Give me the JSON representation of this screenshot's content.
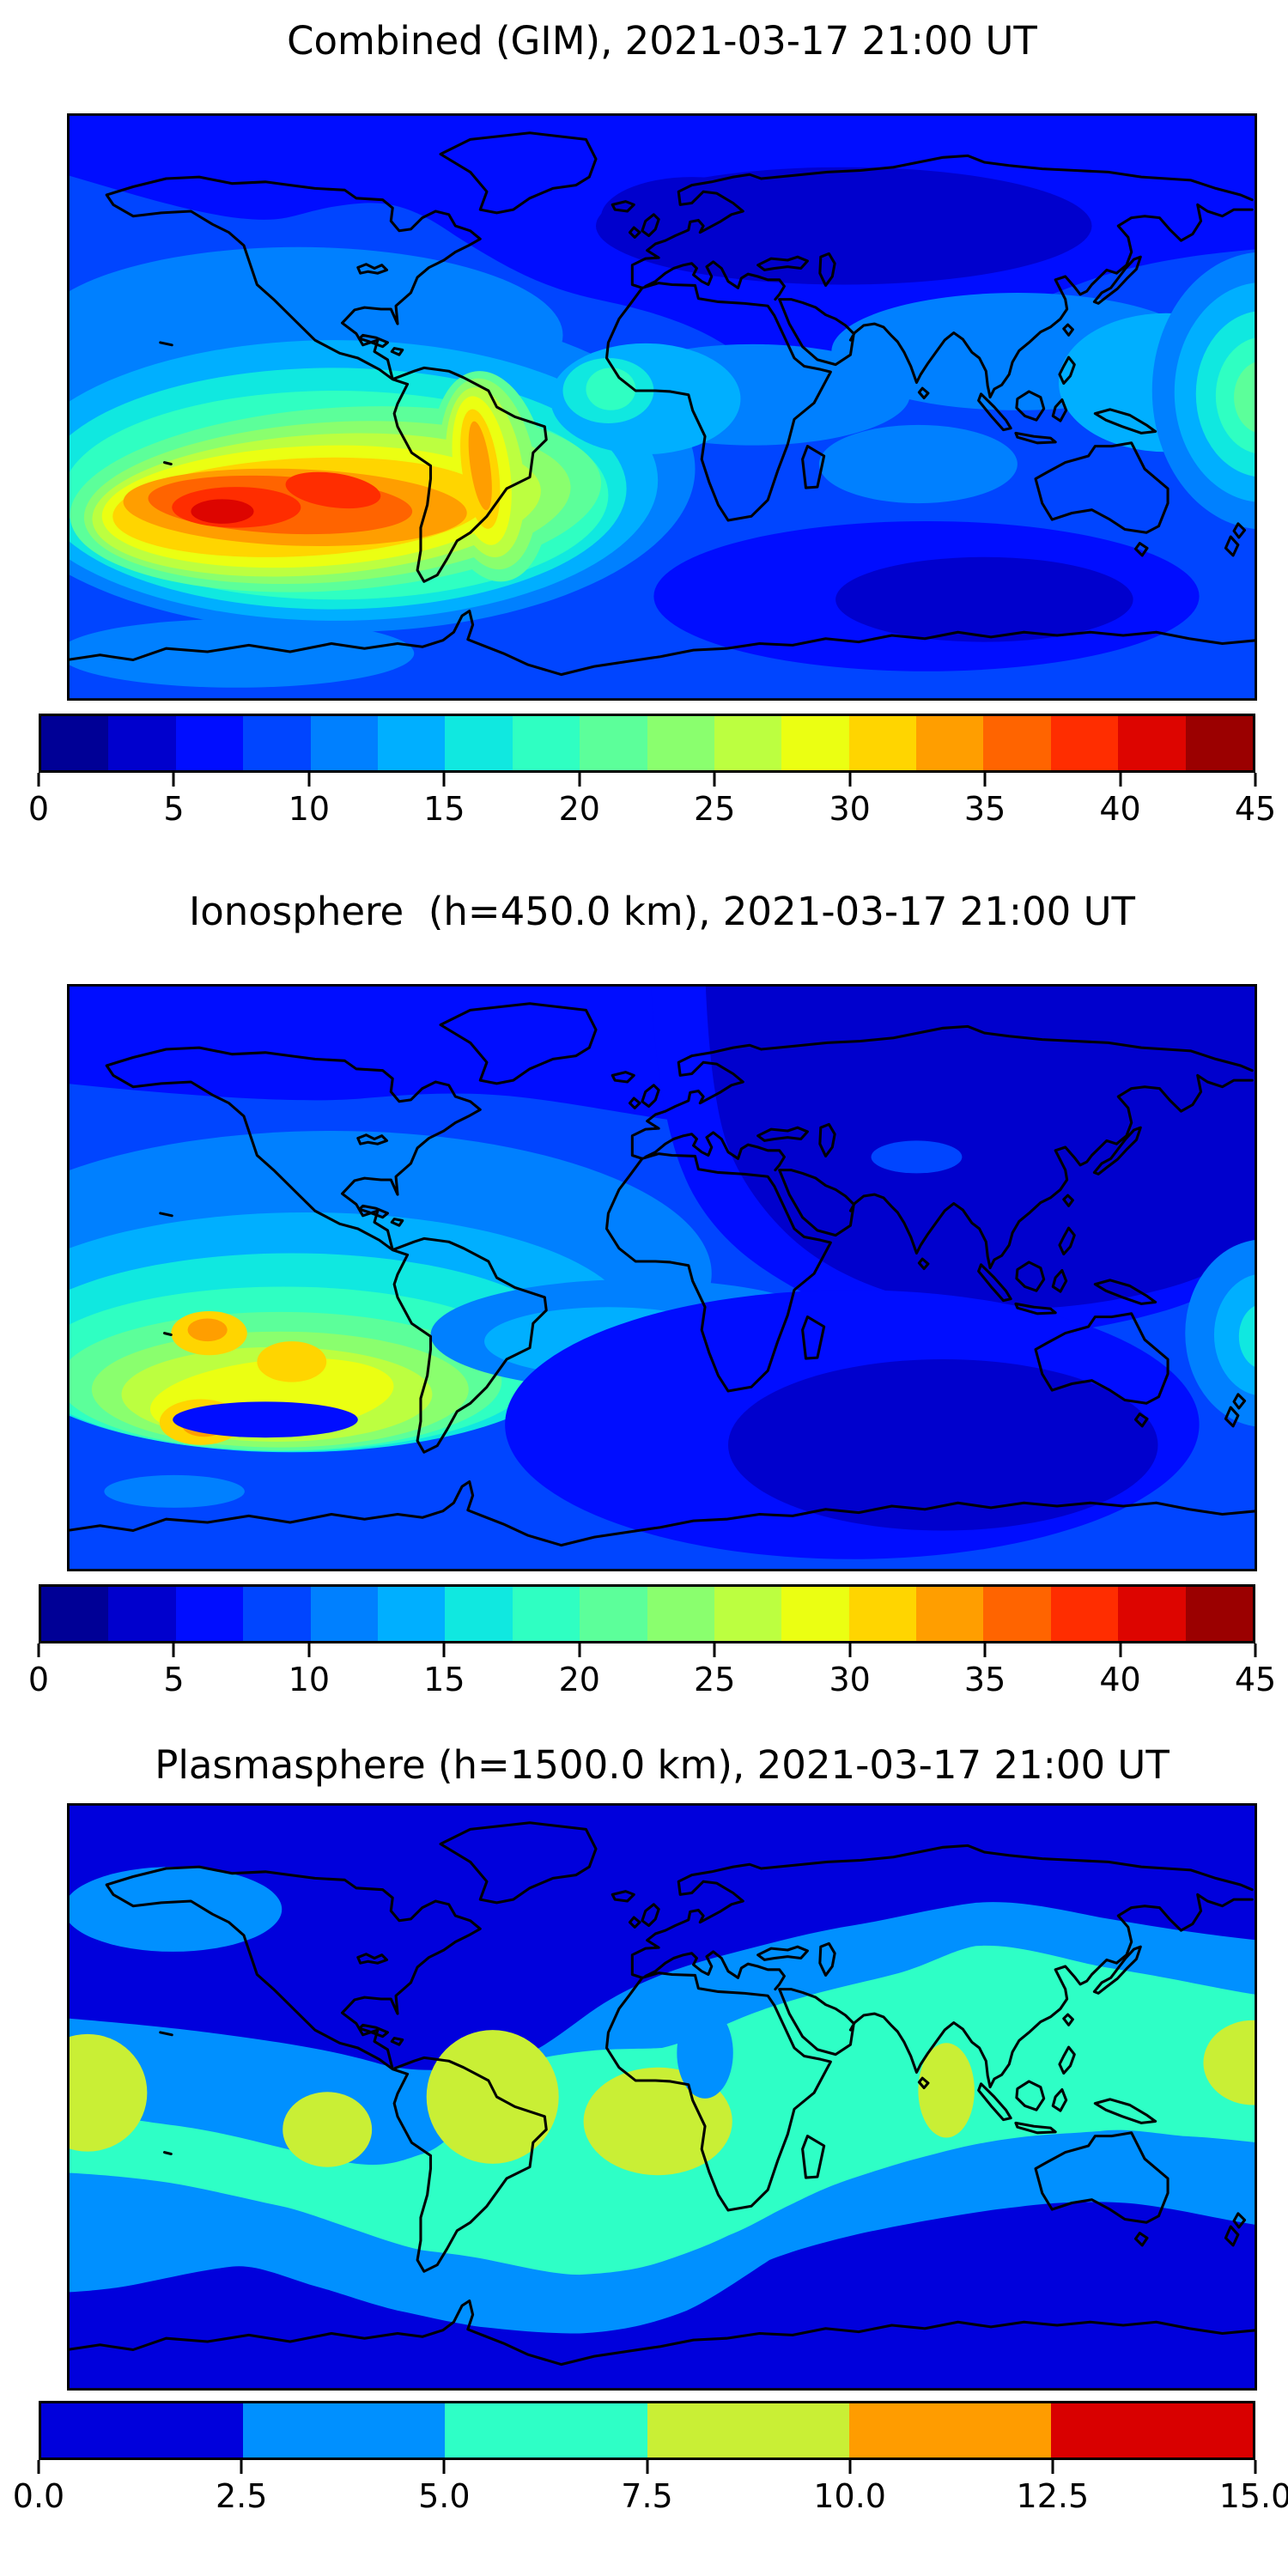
{
  "page": {
    "background": "#ffffff",
    "coastline_color": "#000000",
    "kind": "three stacked global TEC contour maps"
  },
  "figures": [
    {
      "id": "combined",
      "title": "Combined (GIM), 2021-03-17 21:00 UT",
      "colorbar": {
        "ticks": [
          "0",
          "5",
          "10",
          "15",
          "20",
          "25",
          "30",
          "35",
          "40",
          "45"
        ],
        "palette": [
          "#000096",
          "#0000CD",
          "#000DFF",
          "#0045FF",
          "#0080FF",
          "#00AFFF",
          "#10E8E0",
          "#2FFFC2",
          "#5CFF9A",
          "#8AFF6E",
          "#BCFF40",
          "#EBFF12",
          "#FFD500",
          "#FF9E00",
          "#FF6400",
          "#FF2D00",
          "#DD0500",
          "#9B0000"
        ]
      }
    },
    {
      "id": "ionosphere",
      "title": "Ionosphere  (h=450.0 km), 2021-03-17 21:00 UT",
      "colorbar": {
        "ticks": [
          "0",
          "5",
          "10",
          "15",
          "20",
          "25",
          "30",
          "35",
          "40",
          "45"
        ],
        "palette": [
          "#000096",
          "#0000CD",
          "#000DFF",
          "#0045FF",
          "#0080FF",
          "#00AFFF",
          "#10E8E0",
          "#2FFFC2",
          "#5CFF9A",
          "#8AFF6E",
          "#BCFF40",
          "#EBFF12",
          "#FFD500",
          "#FF9E00",
          "#FF6400",
          "#FF2D00",
          "#DD0500",
          "#9B0000"
        ]
      }
    },
    {
      "id": "plasmasphere",
      "title": "Plasmasphere (h=1500.0 km), 2021-03-17 21:00 UT",
      "colorbar": {
        "ticks": [
          "0.0",
          "2.5",
          "5.0",
          "7.5",
          "10.0",
          "12.5",
          "15.0"
        ],
        "palette": [
          "#0000DC",
          "#0090FF",
          "#2EFFC6",
          "#C9EF35",
          "#FF9C00",
          "#D90000"
        ]
      }
    }
  ],
  "chart_data": [
    {
      "type": "heatmap",
      "subtype": "filled contour map over world coastlines (jet colormap)",
      "title": "Combined (GIM), 2021-03-17 21:00 UT",
      "projection": "equirectangular, lon -180..180, lat -90..90",
      "value_range": [
        0,
        45
      ],
      "contour_interval": 2.5,
      "colorbar_ticks": [
        0,
        5,
        10,
        15,
        20,
        25,
        30,
        35,
        40,
        45
      ],
      "legend_position": "horizontal colorbar below map",
      "features": [
        {
          "name": "equatorial ionization maximum",
          "location": "South Pacific west of South America, lon -150..-60, lat -30..5",
          "value": "35-45, red cores ~ 42"
        },
        {
          "name": "yellow lobe over NE Brazil coast",
          "location": "lon -50..-35, lat -5..-25",
          "value": "~30-35"
        },
        {
          "name": "wrap-around maximum at east edge",
          "location": "lon ~180, lat -25..0",
          "value": "~20-25 (green core)"
        },
        {
          "name": "North America / North Atlantic mid-latitudes",
          "value": "10-15 (light blue / cyan)"
        },
        {
          "name": "night-side minimum over Siberia / northern Eurasia",
          "value": "2.5-5 (navy)"
        },
        {
          "name": "southern Indian Ocean minimum",
          "location": "lon 60..140, lat -40..-65",
          "value": "2.5-5"
        },
        {
          "name": "equatorial Africa / Atlantic band",
          "value": "12.5-20 (cyan, small turquoise spot ~20 west of Africa)"
        }
      ]
    },
    {
      "type": "heatmap",
      "subtype": "filled contour map over world coastlines (jet colormap)",
      "title": "Ionosphere  (h=450.0 km), 2021-03-17 21:00 UT",
      "projection": "equirectangular, lon -180..180, lat -90..90",
      "value_range": [
        0,
        45
      ],
      "contour_interval": 2.5,
      "colorbar_ticks": [
        0,
        5,
        10,
        15,
        20,
        25,
        30,
        35,
        40,
        45
      ],
      "legend_position": "horizontal colorbar below map",
      "features": [
        {
          "name": "equatorial maximum",
          "location": "South Pacific west of South America, lon -150..-65, lat -30..0",
          "value": "25-32, gold/orange cores ~ 31 at (lon -135 lat -12), (lon -110 lat -17), (lon -140 lat -29)"
        },
        {
          "name": "large night-side minimum over Eurasia",
          "location": "lon 0..180, lat 0..75",
          "value": "0-5 (navy), slightly lighter spot near Tibet"
        },
        {
          "name": "south Indian Ocean minimum",
          "location": "lon 60..140, lat -30..-65",
          "value": "0-5"
        },
        {
          "name": "small cyan maximum wrapping east edge",
          "location": "lon ~180, lat -20",
          "value": "~15"
        },
        {
          "name": "Americas mid-latitudes",
          "value": "7.5-12.5 (blue to light blue)"
        }
      ]
    },
    {
      "type": "heatmap",
      "subtype": "filled contour map over world coastlines (jet colormap, 6 levels)",
      "title": "Plasmasphere (h=1500.0 km), 2021-03-17 21:00 UT",
      "projection": "equirectangular, lon -180..180, lat -90..90",
      "value_range": [
        0,
        15
      ],
      "contour_interval": 2.5,
      "colorbar_ticks": [
        0.0,
        2.5,
        5.0,
        7.5,
        10.0,
        12.5,
        15.0
      ],
      "legend_position": "horizontal colorbar below map",
      "features": [
        {
          "name": "polar minima (north and south)",
          "value": "0-2.5 (blue)"
        },
        {
          "name": "mid-latitude transition bands",
          "value": "2.5-5 (azure), band boundaries undulate with geomagnetic equator, higher latitudes on Asian side"
        },
        {
          "name": "broad equatorial belt",
          "value": "5-7.5 (turquoise)"
        },
        {
          "name": "7.5-10 yellow-green blobs",
          "location": "lon ~ -178, -100, -52, 0, +86, +178 at lat ~ -5..-25",
          "value": "7.5-10"
        },
        {
          "name": "azure patch over Bering / Alaska",
          "location": "lon -170..-115, lat 55..70",
          "value": "2.5-5"
        },
        {
          "name": "azure tongue over west Africa",
          "location": "lon ~12, lat 10..35",
          "value": "2.5-5"
        }
      ]
    }
  ]
}
